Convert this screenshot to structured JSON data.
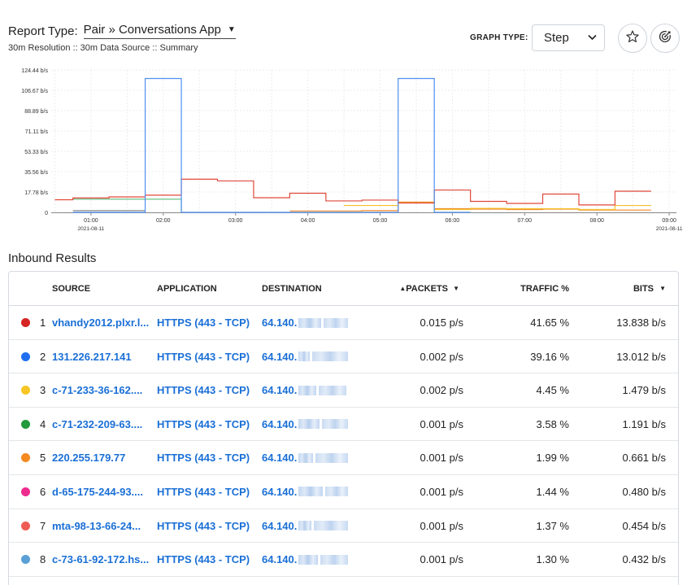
{
  "header": {
    "report_type_label": "Report Type:",
    "report_type_value": "Pair » Conversations App",
    "subline": "30m Resolution :: 30m Data Source :: Summary",
    "graph_type_label": "GRAPH TYPE:",
    "graph_type_value": "Step"
  },
  "icons": {
    "report_caret": "caret-down-icon",
    "graph_chevron": "chevron-down-icon",
    "favorite": "star-icon",
    "target": "target-icon"
  },
  "chart_data": {
    "type": "line",
    "step": true,
    "y_tick_labels": [
      "124.44 b/s",
      "106.67 b/s",
      "88.89 b/s",
      "71.11 b/s",
      "53.33 b/s",
      "35.56 b/s",
      "17.78 b/s",
      "0"
    ],
    "y_ticks": [
      124.44,
      106.67,
      88.89,
      71.11,
      53.33,
      35.56,
      17.78,
      0
    ],
    "ylim": [
      0,
      124.44
    ],
    "x_ticks": [
      {
        "t": 1,
        "label": "01:00",
        "sublabel": "2021-08-11"
      },
      {
        "t": 2,
        "label": "02:00",
        "sublabel": ""
      },
      {
        "t": 3,
        "label": "03:00",
        "sublabel": ""
      },
      {
        "t": 4,
        "label": "04:00",
        "sublabel": ""
      },
      {
        "t": 5,
        "label": "05:00",
        "sublabel": ""
      },
      {
        "t": 6,
        "label": "06:00",
        "sublabel": ""
      },
      {
        "t": 7,
        "label": "07:00",
        "sublabel": ""
      },
      {
        "t": 8,
        "label": "08:00",
        "sublabel": ""
      },
      {
        "t": 9,
        "label": "09:00",
        "sublabel": "2021-08-11"
      }
    ],
    "xlim": [
      0.45,
      9.1
    ],
    "grid": true,
    "series": [
      {
        "color": "#e0483a",
        "x": [
          0.5,
          0.75,
          1.25,
          1.75,
          2.25,
          2.75,
          3.25,
          3.75,
          4.25,
          4.75,
          5.25,
          5.75,
          6.25,
          6.75,
          7.25,
          7.75,
          8.25,
          8.75
        ],
        "y": [
          11,
          12.6,
          13.5,
          15,
          29,
          27.5,
          12.8,
          16.7,
          10,
          10.7,
          8.2,
          19.5,
          9.6,
          7.8,
          16,
          6.5,
          18.5,
          18.5
        ]
      },
      {
        "color": "#4e8ff0",
        "x": [
          0.75,
          1.25,
          1.75,
          2.25,
          5.25,
          5.75,
          6.25
        ],
        "y": [
          0,
          0,
          117,
          0,
          117,
          0,
          0
        ]
      },
      {
        "color": "#5cb97a",
        "x": [
          0.75,
          1.25,
          1.75,
          2.25
        ],
        "y": [
          11.5,
          11.5,
          11.5,
          0
        ]
      },
      {
        "color": "#f5c02a",
        "x": [
          4.5,
          5.25,
          5.75,
          6.25,
          6.75,
          7.25,
          7.75,
          8.25,
          8.75
        ],
        "y": [
          6,
          8.5,
          2.5,
          3.5,
          3.2,
          3.2,
          2.5,
          6,
          6
        ]
      },
      {
        "color": "#f08a2a",
        "x": [
          3.75,
          4.25,
          4.75,
          5.25,
          5.75,
          6.25,
          6.75,
          7.25,
          7.75,
          8.25,
          8.75
        ],
        "y": [
          1.2,
          1.2,
          1.5,
          9,
          3.2,
          2.8,
          2.5,
          2.8,
          2,
          2,
          2
        ]
      },
      {
        "color": "#888888",
        "x": [
          0.75,
          1.25,
          1.75
        ],
        "y": [
          1.5,
          1.5,
          1.5
        ]
      }
    ]
  },
  "inbound": {
    "title": "Inbound Results",
    "columns": {
      "source": "SOURCE",
      "application": "APPLICATION",
      "destination": "DESTINATION",
      "packets": "PACKETS",
      "traffic": "TRAFFIC %",
      "bits": "BITS"
    },
    "rows": [
      {
        "color": "#d62424",
        "index": "1",
        "source": "vhandy2012.plxr.l...",
        "application": "HTTPS (443 - TCP)",
        "destination": "64.140.",
        "packets": "0.015 p/s",
        "traffic": "41.65 %",
        "bits": "13.838 b/s"
      },
      {
        "color": "#1f6ff0",
        "index": "2",
        "source": "131.226.217.141",
        "application": "HTTPS (443 - TCP)",
        "destination": "64.140.",
        "packets": "0.002 p/s",
        "traffic": "39.16 %",
        "bits": "13.012 b/s"
      },
      {
        "color": "#f7c624",
        "index": "3",
        "source": "c-71-233-36-162....",
        "application": "HTTPS (443 - TCP)",
        "destination": "64.140.",
        "packets": "0.002 p/s",
        "traffic": "4.45 %",
        "bits": "1.479 b/s"
      },
      {
        "color": "#239a3b",
        "index": "4",
        "source": "c-71-232-209-63....",
        "application": "HTTPS (443 - TCP)",
        "destination": "64.140.",
        "packets": "0.001 p/s",
        "traffic": "3.58 %",
        "bits": "1.191 b/s"
      },
      {
        "color": "#f58a1f",
        "index": "5",
        "source": "220.255.179.77",
        "application": "HTTPS (443 - TCP)",
        "destination": "64.140.",
        "packets": "0.001 p/s",
        "traffic": "1.99 %",
        "bits": "0.661 b/s"
      },
      {
        "color": "#ee2b8f",
        "index": "6",
        "source": "d-65-175-244-93....",
        "application": "HTTPS (443 - TCP)",
        "destination": "64.140.",
        "packets": "0.001 p/s",
        "traffic": "1.44 %",
        "bits": "0.480 b/s"
      },
      {
        "color": "#ee5c55",
        "index": "7",
        "source": "mta-98-13-66-24...",
        "application": "HTTPS (443 - TCP)",
        "destination": "64.140.",
        "packets": "0.001 p/s",
        "traffic": "1.37 %",
        "bits": "0.454 b/s"
      },
      {
        "color": "#5aa0d6",
        "index": "8",
        "source": "c-73-61-92-172.hs...",
        "application": "HTTPS (443 - TCP)",
        "destination": "64.140.",
        "packets": "0.001 p/s",
        "traffic": "1.30 %",
        "bits": "0.432 b/s"
      }
    ]
  }
}
